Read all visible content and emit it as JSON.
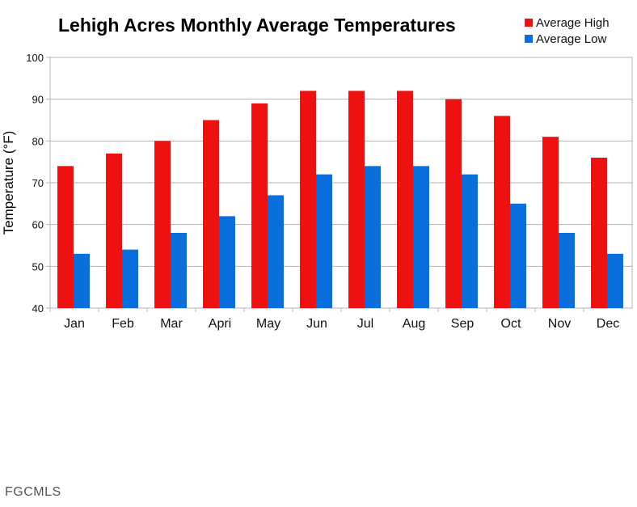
{
  "chart_data": {
    "type": "bar",
    "title": "Lehigh Acres Monthly Average Temperatures",
    "xlabel": "",
    "ylabel": "Temperature (°F)",
    "ylim": [
      40,
      100
    ],
    "yticks": [
      40,
      50,
      60,
      70,
      80,
      90,
      100
    ],
    "grid": true,
    "legend_position": "top-right",
    "categories": [
      "Jan",
      "Feb",
      "Mar",
      "Apri",
      "May",
      "Jun",
      "Jul",
      "Aug",
      "Sep",
      "Oct",
      "Nov",
      "Dec"
    ],
    "series": [
      {
        "name": "Average High",
        "color": "#ee1111",
        "values": [
          74,
          77,
          80,
          85,
          89,
          92,
          92,
          92,
          90,
          86,
          81,
          76
        ]
      },
      {
        "name": "Average Low",
        "color": "#0a6fdc",
        "values": [
          53,
          54,
          58,
          62,
          67,
          72,
          74,
          74,
          72,
          65,
          58,
          53
        ]
      }
    ]
  },
  "watermark": "FGCMLS"
}
